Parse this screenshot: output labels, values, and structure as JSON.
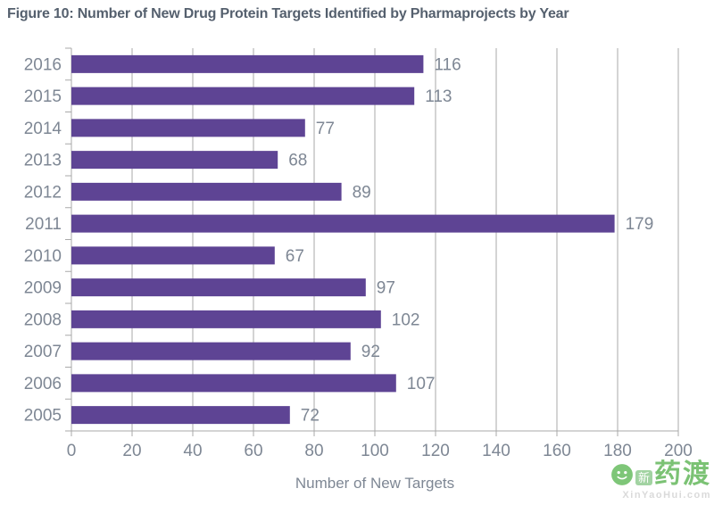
{
  "chart_data": {
    "type": "bar",
    "orientation": "horizontal",
    "title": "Figure 10: Number of New Drug Protein Targets Identified by Pharmaprojects by Year",
    "categories": [
      "2016",
      "2015",
      "2014",
      "2013",
      "2012",
      "2011",
      "2010",
      "2009",
      "2008",
      "2007",
      "2006",
      "2005"
    ],
    "values": [
      116,
      113,
      77,
      68,
      89,
      179,
      67,
      97,
      102,
      92,
      107,
      72
    ],
    "xlabel": "Number of New Targets",
    "ylabel": "",
    "xlim": [
      0,
      200
    ],
    "xticks": [
      0,
      20,
      40,
      60,
      80,
      100,
      120,
      140,
      160,
      180,
      200
    ],
    "grid": true,
    "legend": "none",
    "value_labels": true,
    "bar_color": "#5e4494",
    "grid_color": "#a9a9a9",
    "label_color": "#7e8794",
    "title_color": "#55606e"
  },
  "watermark": {
    "badge_text": "新",
    "brand_text": "药渡",
    "url_text": "XinYaoHui.com",
    "green": "#57b24e"
  }
}
